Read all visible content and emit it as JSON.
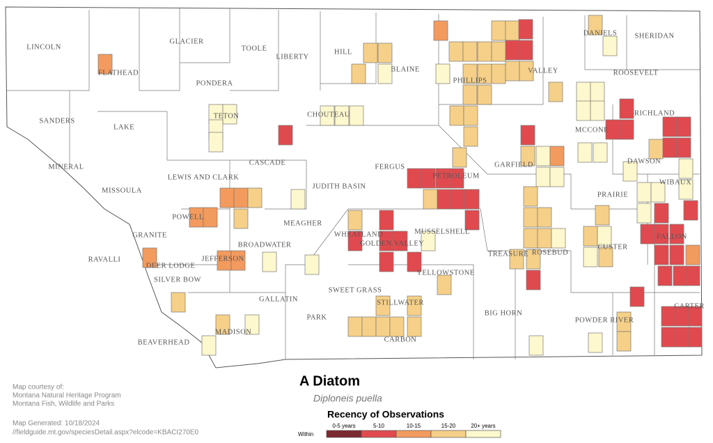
{
  "title": "A Diatom",
  "subtitle": "Diploneis puella",
  "legend": {
    "title": "Recency of Observations",
    "within": "Within",
    "classes": [
      {
        "label": "0-5 years",
        "color": "#7b2a30"
      },
      {
        "label": "5-10",
        "color": "#e04a4f"
      },
      {
        "label": "10-15",
        "color": "#f39a5e"
      },
      {
        "label": "15-20",
        "color": "#f6d088"
      },
      {
        "label": "20+ years",
        "color": "#fdf8cd"
      }
    ]
  },
  "credits": {
    "courtesy": "Map courtesy of:",
    "org1": "Montana Natural Heritage Program",
    "org2": "Montana Fish, Wildlife and Parks",
    "generated": "Map Generated: 10/18/2024",
    "url": "//fieldguide.mt.gov/speciesDetail.aspx?elcode=KBACI270E0"
  },
  "counties": [
    "LINCOLN",
    "FLATHEAD",
    "GLACIER",
    "TOOLE",
    "LIBERTY",
    "HILL",
    "BLAINE",
    "PHILLIPS",
    "VALLEY",
    "DANIELS",
    "SHERIDAN",
    "ROOSEVELT",
    "PONDERA",
    "TETON",
    "CHOUTEAU",
    "SANDERS",
    "LAKE",
    "RICHLAND",
    "MCCONE",
    "CASCADE",
    "FERGUS",
    "PETROLEUM",
    "GARFIELD",
    "DAWSON",
    "MINERAL",
    "MISSOULA",
    "LEWIS AND CLARK",
    "JUDITH BASIN",
    "PRAIRIE",
    "WIBAUX",
    "POWELL",
    "MEAGHER",
    "WHEATLAND",
    "GOLDEN VALLEY",
    "MUSSELSHELL",
    "GRANITE",
    "BROADWATER",
    "FALLON",
    "RAVALLI",
    "DEER LODGE",
    "JEFFERSON",
    "TREASURE",
    "ROSEBUD",
    "CUSTER",
    "SILVER BOW",
    "YELLOWSTONE",
    "SWEET GRASS",
    "STILLWATER",
    "GALLATIN",
    "CARTER",
    "PARK",
    "BIG HORN",
    "POWDER RIVER",
    "MADISON",
    "CARBON",
    "BEAVERHEAD"
  ]
}
